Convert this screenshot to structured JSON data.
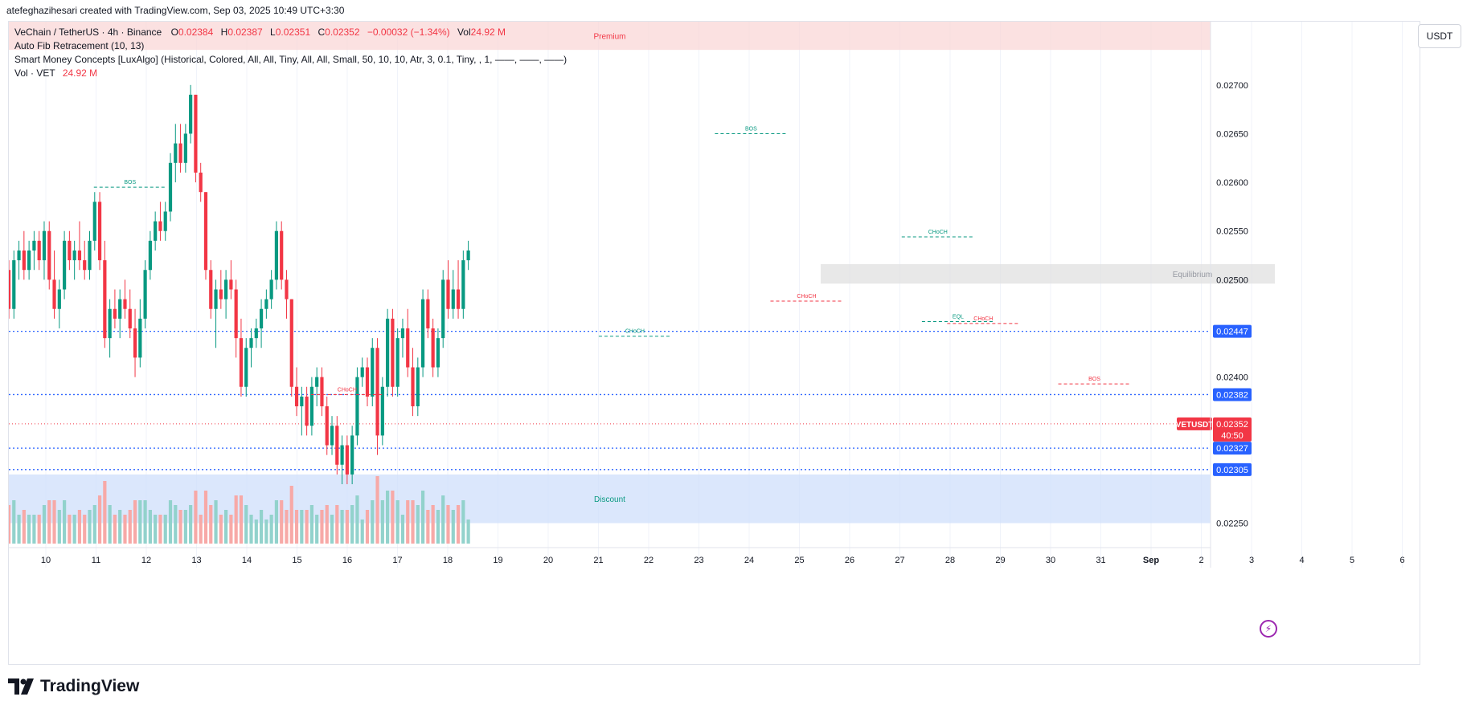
{
  "header": {
    "byline": "atefeghazihesari created with TradingView.com, Sep 03, 2025 10:49 UTC+3:30"
  },
  "legend": {
    "symbol": "VeChain / TetherUS · 4h · Binance",
    "o_label": "O",
    "o": "0.02384",
    "h_label": "H",
    "h": "0.02387",
    "l_label": "L",
    "l": "0.02351",
    "c_label": "C",
    "c": "0.02352",
    "change": "−0.00032 (−1.34%)",
    "vol_label": "Vol",
    "vol": "24.92 M",
    "fib": "Auto Fib Retracement (10, 13)",
    "smc": "Smart Money Concepts [LuxAlgo] (Historical, Colored, All, All, Tiny, All, All, Small, 50, 10, 10, Atr, 3, 0.1, Tiny, , 1, ——, ——, ——)",
    "vol_line_label": "Vol · VET",
    "vol_line_value": "24.92 M"
  },
  "currency_button": "USDT",
  "brand": "TradingView",
  "colors": {
    "up": "#089981",
    "down": "#f23645",
    "vol_up": "#92d2cc",
    "vol_down": "#f7a9a7",
    "premium_zone": "#f9d7d7",
    "discount_zone": "#cfdffb",
    "equilibrium_zone": "#e0e0e0",
    "price_tag_blue": "#2962ff",
    "fib_green": "#089981",
    "fib_red": "#f23645"
  },
  "chart_data": {
    "type": "candlestick",
    "interval": "4h",
    "x_tick_labels": [
      "10",
      "11",
      "12",
      "13",
      "14",
      "15",
      "16",
      "17",
      "18",
      "19",
      "20",
      "21",
      "22",
      "23",
      "24",
      "25",
      "26",
      "27",
      "28",
      "29",
      "30",
      "31",
      "Sep",
      "2",
      "3",
      "4",
      "5",
      "6"
    ],
    "y_tick_labels": [
      "0.02700",
      "0.02650",
      "0.02600",
      "0.02550",
      "0.02500",
      "0.02400",
      "0.02250"
    ],
    "ylim": [
      0.02229,
      0.02765
    ],
    "price_tags": [
      {
        "label": "0.02447",
        "value": 0.02447,
        "color": "#2962ff"
      },
      {
        "label": "0.02382",
        "value": 0.02382,
        "color": "#2962ff"
      },
      {
        "label": "0.02327",
        "value": 0.02327,
        "color": "#2962ff"
      },
      {
        "label": "0.02305",
        "value": 0.02305,
        "color": "#2962ff"
      }
    ],
    "last_price": {
      "symbol": "VETUSDT",
      "value": "0.02352",
      "countdown": "40:50",
      "color": "#f23645"
    },
    "zones": [
      {
        "label": "Premium",
        "from": 0.02736,
        "to": 0.02765
      },
      {
        "label": "Equilibrium",
        "from": 0.02496,
        "to": 0.02516
      },
      {
        "label": "Discount",
        "from": 0.0225,
        "to": 0.023
      }
    ],
    "structure_labels": [
      {
        "label": "BOS",
        "x": 11.6,
        "y": 0.02595,
        "color": "#089981"
      },
      {
        "label": "BOS",
        "x": 23.9,
        "y": 0.0265,
        "color": "#089981"
      },
      {
        "label": "CHoCH",
        "x": 15.9,
        "y": 0.02382,
        "color": "#f23645"
      },
      {
        "label": "CHoCH",
        "x": 21.6,
        "y": 0.02442,
        "color": "#089981"
      },
      {
        "label": "CHoCH",
        "x": 25.0,
        "y": 0.02478,
        "color": "#f23645"
      },
      {
        "label": "CHoCH",
        "x": 27.6,
        "y": 0.02544,
        "color": "#089981"
      },
      {
        "label": "EQL",
        "x": 28.0,
        "y": 0.02457,
        "color": "#089981"
      },
      {
        "label": "CHoCH",
        "x": 28.5,
        "y": 0.02455,
        "color": "#f23645"
      },
      {
        "label": "BOS",
        "x": 30.7,
        "y": 0.02393,
        "color": "#f23645"
      }
    ],
    "candles": [
      [
        9.2,
        0.0251,
        0.0252,
        0.0246,
        0.0247
      ],
      [
        9.3,
        0.0247,
        0.0253,
        0.0246,
        0.0252
      ],
      [
        9.4,
        0.0252,
        0.0254,
        0.025,
        0.0253
      ],
      [
        9.5,
        0.0253,
        0.0255,
        0.025,
        0.0251
      ],
      [
        9.6,
        0.0251,
        0.0254,
        0.025,
        0.0253
      ],
      [
        9.7,
        0.0253,
        0.0255,
        0.0251,
        0.0254
      ],
      [
        9.8,
        0.0254,
        0.0255,
        0.0251,
        0.0252
      ],
      [
        9.9,
        0.0252,
        0.0256,
        0.025,
        0.0255
      ],
      [
        10.0,
        0.0255,
        0.0256,
        0.0249,
        0.025
      ],
      [
        10.1,
        0.025,
        0.0253,
        0.0246,
        0.0247
      ],
      [
        10.2,
        0.0247,
        0.025,
        0.0245,
        0.0249
      ],
      [
        10.3,
        0.0249,
        0.0255,
        0.0248,
        0.0254
      ],
      [
        10.4,
        0.0254,
        0.0255,
        0.0251,
        0.0252
      ],
      [
        10.5,
        0.0252,
        0.0254,
        0.025,
        0.0253
      ],
      [
        10.6,
        0.0253,
        0.0256,
        0.0251,
        0.0252
      ],
      [
        10.7,
        0.0252,
        0.0254,
        0.025,
        0.0251
      ],
      [
        10.8,
        0.0251,
        0.0255,
        0.025,
        0.0254
      ],
      [
        10.9,
        0.0254,
        0.0259,
        0.0253,
        0.0258
      ],
      [
        11.0,
        0.0258,
        0.0259,
        0.0251,
        0.0252
      ],
      [
        11.1,
        0.0252,
        0.0254,
        0.0243,
        0.0244
      ],
      [
        11.2,
        0.0244,
        0.0248,
        0.0242,
        0.0247
      ],
      [
        11.3,
        0.0247,
        0.0249,
        0.0245,
        0.0246
      ],
      [
        11.4,
        0.0246,
        0.0249,
        0.0244,
        0.0248
      ],
      [
        11.5,
        0.0248,
        0.025,
        0.0246,
        0.0247
      ],
      [
        11.6,
        0.0247,
        0.0249,
        0.0244,
        0.0245
      ],
      [
        11.7,
        0.0245,
        0.0247,
        0.024,
        0.0242
      ],
      [
        11.8,
        0.0242,
        0.0248,
        0.0241,
        0.0246
      ],
      [
        11.9,
        0.0246,
        0.0252,
        0.0245,
        0.0251
      ],
      [
        12.0,
        0.0251,
        0.0255,
        0.025,
        0.0254
      ],
      [
        12.1,
        0.0254,
        0.0257,
        0.0253,
        0.0256
      ],
      [
        12.2,
        0.0256,
        0.0258,
        0.0254,
        0.0255
      ],
      [
        12.3,
        0.0255,
        0.0258,
        0.0254,
        0.0257
      ],
      [
        12.4,
        0.0257,
        0.0263,
        0.0256,
        0.0262
      ],
      [
        12.5,
        0.0262,
        0.0266,
        0.026,
        0.0264
      ],
      [
        12.6,
        0.0264,
        0.0266,
        0.0261,
        0.0262
      ],
      [
        12.7,
        0.0262,
        0.0266,
        0.0261,
        0.0265
      ],
      [
        12.8,
        0.0265,
        0.027,
        0.0264,
        0.0269
      ],
      [
        12.9,
        0.0269,
        0.0269,
        0.026,
        0.0261
      ],
      [
        13.0,
        0.0261,
        0.0262,
        0.0258,
        0.0259
      ],
      [
        13.1,
        0.0259,
        0.0259,
        0.025,
        0.0251
      ],
      [
        13.2,
        0.0251,
        0.0252,
        0.0246,
        0.0247
      ],
      [
        13.3,
        0.0247,
        0.025,
        0.0243,
        0.0249
      ],
      [
        13.4,
        0.0249,
        0.0251,
        0.0247,
        0.0248
      ],
      [
        13.5,
        0.0248,
        0.0251,
        0.0246,
        0.025
      ],
      [
        13.6,
        0.025,
        0.0252,
        0.0248,
        0.0249
      ],
      [
        13.7,
        0.0249,
        0.025,
        0.0242,
        0.0244
      ],
      [
        13.8,
        0.0244,
        0.0246,
        0.0238,
        0.0239
      ],
      [
        13.9,
        0.0239,
        0.0244,
        0.0238,
        0.0243
      ],
      [
        14.0,
        0.0243,
        0.0245,
        0.0241,
        0.0244
      ],
      [
        14.1,
        0.0244,
        0.0246,
        0.0243,
        0.0245
      ],
      [
        14.2,
        0.0245,
        0.0248,
        0.0243,
        0.0247
      ],
      [
        14.3,
        0.0247,
        0.0249,
        0.0246,
        0.0248
      ],
      [
        14.4,
        0.0248,
        0.0251,
        0.0247,
        0.025
      ],
      [
        14.5,
        0.025,
        0.0256,
        0.0249,
        0.0255
      ],
      [
        14.6,
        0.0255,
        0.0256,
        0.0249,
        0.025
      ],
      [
        14.7,
        0.025,
        0.0251,
        0.0246,
        0.0248
      ],
      [
        14.8,
        0.0248,
        0.0248,
        0.0238,
        0.0239
      ],
      [
        14.9,
        0.0239,
        0.0241,
        0.0236,
        0.0237
      ],
      [
        15.0,
        0.0237,
        0.0239,
        0.0234,
        0.0238
      ],
      [
        15.1,
        0.0238,
        0.0239,
        0.0234,
        0.0235
      ],
      [
        15.2,
        0.0235,
        0.024,
        0.0234,
        0.0239
      ],
      [
        15.3,
        0.0239,
        0.0241,
        0.0237,
        0.024
      ],
      [
        15.4,
        0.024,
        0.0241,
        0.0236,
        0.0237
      ],
      [
        15.5,
        0.0237,
        0.0238,
        0.0232,
        0.0233
      ],
      [
        15.6,
        0.0233,
        0.0236,
        0.0232,
        0.0235
      ],
      [
        15.7,
        0.0235,
        0.0236,
        0.023,
        0.0231
      ],
      [
        15.8,
        0.0231,
        0.0234,
        0.0229,
        0.0233
      ],
      [
        15.9,
        0.0233,
        0.0234,
        0.0229,
        0.023
      ],
      [
        16.0,
        0.023,
        0.0235,
        0.0229,
        0.0234
      ],
      [
        16.1,
        0.0234,
        0.0241,
        0.0233,
        0.024
      ],
      [
        16.2,
        0.024,
        0.0242,
        0.0239,
        0.0241
      ],
      [
        16.3,
        0.0241,
        0.0242,
        0.0237,
        0.0238
      ],
      [
        16.4,
        0.0238,
        0.0244,
        0.0237,
        0.0243
      ],
      [
        16.5,
        0.0243,
        0.0244,
        0.0232,
        0.0234
      ],
      [
        16.6,
        0.0234,
        0.024,
        0.0233,
        0.0239
      ],
      [
        16.7,
        0.0239,
        0.0247,
        0.0238,
        0.0246
      ],
      [
        16.8,
        0.0246,
        0.0247,
        0.0238,
        0.0239
      ],
      [
        16.9,
        0.0239,
        0.0245,
        0.0238,
        0.0244
      ],
      [
        17.0,
        0.0244,
        0.0246,
        0.0242,
        0.0245
      ],
      [
        17.1,
        0.0245,
        0.0247,
        0.024,
        0.0241
      ],
      [
        17.2,
        0.0241,
        0.0243,
        0.0236,
        0.0237
      ],
      [
        17.3,
        0.0237,
        0.0242,
        0.0236,
        0.0241
      ],
      [
        17.4,
        0.0241,
        0.0249,
        0.024,
        0.0248
      ],
      [
        17.5,
        0.0248,
        0.0249,
        0.0244,
        0.0245
      ],
      [
        17.6,
        0.0245,
        0.0246,
        0.024,
        0.0241
      ],
      [
        17.7,
        0.0241,
        0.0245,
        0.024,
        0.0244
      ],
      [
        17.8,
        0.0244,
        0.0251,
        0.0243,
        0.025
      ],
      [
        17.9,
        0.025,
        0.0252,
        0.0246,
        0.0247
      ],
      [
        18.0,
        0.0247,
        0.0251,
        0.0246,
        0.0249
      ],
      [
        18.1,
        0.0249,
        0.0252,
        0.0246,
        0.0247
      ],
      [
        18.2,
        0.0247,
        0.0253,
        0.0246,
        0.0252
      ],
      [
        18.3,
        0.0252,
        0.0254,
        0.0251,
        0.0253
      ]
    ],
    "volume_note": "volume histogram bars drawn beneath price in vol_up / vol_down colors"
  }
}
